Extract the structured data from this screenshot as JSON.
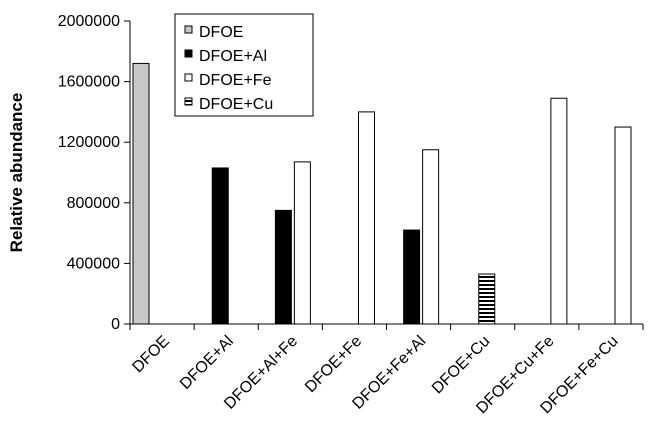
{
  "chart_data": {
    "type": "bar",
    "title": "",
    "xlabel": "",
    "ylabel": "Relative abundance",
    "ylim": [
      0,
      2000000
    ],
    "yticks": [
      0,
      400000,
      800000,
      1200000,
      1600000,
      2000000
    ],
    "grid": false,
    "legend_position": "top-center",
    "categories": [
      "DFOE",
      "DFOE+Al",
      "DFOE+Al+Fe",
      "DFOE+Fe",
      "DFOE+Fe+Al",
      "DFOE+Cu",
      "DFOE+Cu+Fe",
      "DFOE+Fe+Cu"
    ],
    "series": [
      {
        "name": "DFOE",
        "fill": "gray",
        "values": [
          1720000,
          0,
          0,
          0,
          0,
          0,
          0,
          0
        ]
      },
      {
        "name": "DFOE+Al",
        "fill": "black",
        "values": [
          0,
          1030000,
          750000,
          0,
          620000,
          0,
          0,
          0
        ]
      },
      {
        "name": "DFOE+Fe",
        "fill": "white",
        "values": [
          0,
          0,
          1070000,
          1400000,
          1150000,
          0,
          1490000,
          1300000
        ]
      },
      {
        "name": "DFOE+Cu",
        "fill": "horizontal-stripes",
        "values": [
          0,
          0,
          0,
          0,
          0,
          330000,
          0,
          0
        ]
      }
    ],
    "colors": {
      "gray": "#c8c8c8",
      "black": "#000000",
      "white": "#ffffff",
      "stroke": "#000000"
    }
  }
}
